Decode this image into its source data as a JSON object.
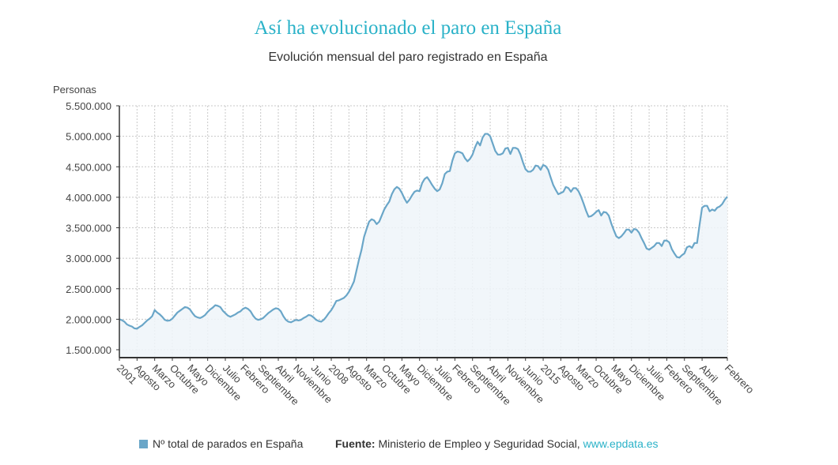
{
  "header": {
    "title": "Así ha evolucionado el paro en España",
    "subtitle": "Evolución mensual del paro registrado en España"
  },
  "legend": {
    "label": "Nº total de parados en España",
    "color": "#6aa6c8"
  },
  "source": {
    "prefix": "Fuente:",
    "text": " Ministerio de Empleo y Seguridad Social, ",
    "link": "www.epdata.es"
  },
  "chart_data": {
    "type": "area",
    "title": "Así ha evolucionado el paro en España",
    "subtitle": "Evolución mensual del paro registrado en España",
    "ylabel": "Personas",
    "xlabel": "",
    "ylim": [
      1400000,
      5500000
    ],
    "yticks": [
      1500000,
      2000000,
      2500000,
      3000000,
      3500000,
      4000000,
      4500000,
      5000000,
      5500000
    ],
    "ytick_labels": [
      "1.500.000",
      "2.000.000",
      "2.500.000",
      "3.000.000",
      "3.500.000",
      "4.000.000",
      "4.500.000",
      "5.000.000",
      "5.500.000"
    ],
    "x_start": "2001-01",
    "x_end": "2021-02",
    "xtick_months": [
      0,
      7,
      14,
      21,
      28,
      35,
      42,
      49,
      56,
      63,
      70,
      77,
      84,
      91,
      98,
      105,
      112,
      119,
      126,
      133,
      140,
      147,
      154,
      161,
      168,
      175,
      182,
      189,
      196,
      203,
      210,
      217,
      224,
      231,
      241
    ],
    "xtick_labels": [
      "2001",
      "Agosto",
      "Marzo",
      "Octubre",
      "Mayo",
      "Diciembre",
      "Julio",
      "Febrero",
      "Septiembre",
      "Abril",
      "Noviembre",
      "Junio",
      "2008",
      "Agosto",
      "Marzo",
      "Octubre",
      "Mayo",
      "Diciembre",
      "Julio",
      "Febrero",
      "Septiembre",
      "Abril",
      "Noviembre",
      "Junio",
      "2015",
      "Agosto",
      "Marzo",
      "Octubre",
      "Mayo",
      "Diciembre",
      "Julio",
      "Febrero",
      "Septiembre",
      "Abril",
      "Febrero"
    ],
    "grid": true,
    "legend_position": "bottom-left",
    "series": [
      {
        "name": "Nº total de parados en España",
        "color": "#6aa6c8",
        "values": [
          2000000,
          1985000,
          1960000,
          1915000,
          1895000,
          1880000,
          1850000,
          1845000,
          1875000,
          1900000,
          1940000,
          1980000,
          2010000,
          2050000,
          2150000,
          2110000,
          2080000,
          2040000,
          1990000,
          1975000,
          1980000,
          2010000,
          2060000,
          2110000,
          2140000,
          2170000,
          2200000,
          2190000,
          2160000,
          2100000,
          2050000,
          2030000,
          2020000,
          2040000,
          2070000,
          2120000,
          2160000,
          2190000,
          2230000,
          2220000,
          2200000,
          2140000,
          2100000,
          2060000,
          2040000,
          2060000,
          2080000,
          2110000,
          2130000,
          2170000,
          2190000,
          2170000,
          2130000,
          2060000,
          2010000,
          1990000,
          2000000,
          2020000,
          2060000,
          2100000,
          2130000,
          2160000,
          2180000,
          2170000,
          2130000,
          2050000,
          1990000,
          1960000,
          1950000,
          1970000,
          1990000,
          1980000,
          1990000,
          2020000,
          2040000,
          2070000,
          2060000,
          2030000,
          1990000,
          1970000,
          1960000,
          1990000,
          2040000,
          2100000,
          2150000,
          2220000,
          2300000,
          2310000,
          2330000,
          2350000,
          2390000,
          2450000,
          2530000,
          2620000,
          2800000,
          2980000,
          3140000,
          3350000,
          3480000,
          3600000,
          3640000,
          3620000,
          3560000,
          3600000,
          3700000,
          3800000,
          3870000,
          3930000,
          4050000,
          4130000,
          4170000,
          4140000,
          4070000,
          3980000,
          3910000,
          3960000,
          4030000,
          4090000,
          4110000,
          4100000,
          4230000,
          4300000,
          4330000,
          4270000,
          4200000,
          4140000,
          4100000,
          4130000,
          4230000,
          4380000,
          4420000,
          4430000,
          4600000,
          4720000,
          4750000,
          4740000,
          4720000,
          4640000,
          4590000,
          4630000,
          4700000,
          4820000,
          4910000,
          4850000,
          4980000,
          5040000,
          5040000,
          5000000,
          4880000,
          4760000,
          4700000,
          4700000,
          4720000,
          4800000,
          4810000,
          4710000,
          4810000,
          4810000,
          4790000,
          4700000,
          4570000,
          4460000,
          4420000,
          4420000,
          4450000,
          4520000,
          4510000,
          4450000,
          4530000,
          4510000,
          4450000,
          4320000,
          4200000,
          4120000,
          4050000,
          4070000,
          4090000,
          4170000,
          4150000,
          4090000,
          4150000,
          4150000,
          4100000,
          4010000,
          3900000,
          3780000,
          3680000,
          3690000,
          3720000,
          3760000,
          3790000,
          3700000,
          3760000,
          3750000,
          3700000,
          3570000,
          3460000,
          3360000,
          3330000,
          3360000,
          3410000,
          3470000,
          3470000,
          3420000,
          3480000,
          3470000,
          3420000,
          3330000,
          3250000,
          3160000,
          3140000,
          3170000,
          3200000,
          3250000,
          3250000,
          3200000,
          3290000,
          3290000,
          3260000,
          3150000,
          3080000,
          3020000,
          3010000,
          3050000,
          3080000,
          3180000,
          3200000,
          3170000,
          3250000,
          3250000,
          3550000,
          3830000,
          3860000,
          3860000,
          3770000,
          3800000,
          3780000,
          3830000,
          3850000,
          3890000,
          3960000,
          4010000
        ]
      }
    ]
  }
}
